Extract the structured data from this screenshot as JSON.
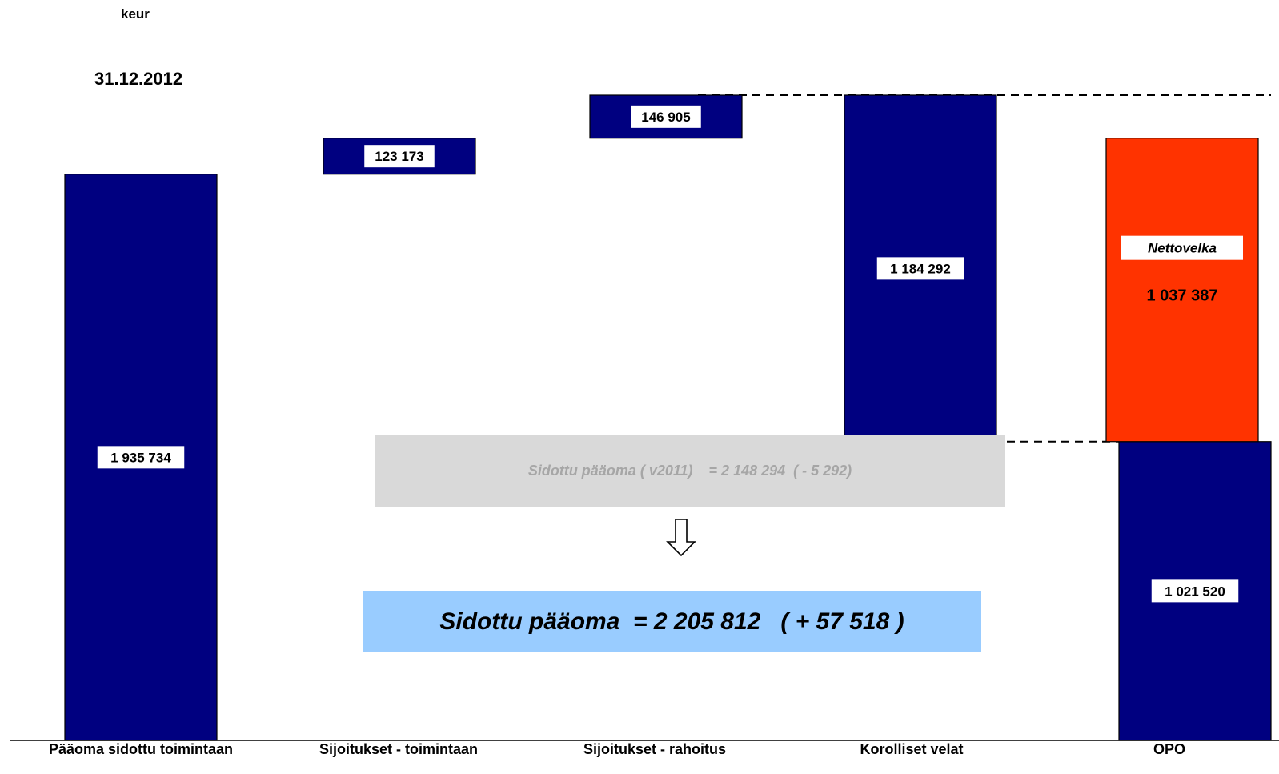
{
  "header": {
    "unit": "keur",
    "date": "31.12.2012"
  },
  "chart_data": {
    "type": "bar",
    "variant": "waterfall",
    "categories": [
      "Pääoma sidottu toimintaan",
      "Sijoitukset - toimintaan",
      "Sijoitukset - rahoitus",
      "Korolliset velat",
      "OPO"
    ],
    "bars": [
      {
        "category": "Pääoma sidottu toimintaan",
        "start": 0,
        "end": 1935734,
        "value": 1935734,
        "label": "1 935 734",
        "color": "#000080"
      },
      {
        "category": "Sijoitukset - toimintaan",
        "start": 1935734,
        "end": 2058907,
        "value": 123173,
        "label": "123 173",
        "color": "#000080"
      },
      {
        "category": "Sijoitukset - rahoitus",
        "start": 2058907,
        "end": 2205812,
        "value": 146905,
        "label": "146 905",
        "color": "#000080"
      },
      {
        "category": "Korolliset velat",
        "start": 1021520,
        "end": 2205812,
        "value": 1184292,
        "label": "1 184 292",
        "color": "#000080"
      },
      {
        "category": "OPO",
        "start": 0,
        "end": 1021520,
        "value": 1021520,
        "label": "1 021 520",
        "color": "#000080"
      },
      {
        "category": "OPO",
        "start": 1021520,
        "end": 2058907,
        "value": 1037387,
        "label": "1 037 387",
        "title": "Nettovelka",
        "color": "#ff3300"
      }
    ],
    "ylim": [
      0,
      2205812
    ]
  },
  "notes": {
    "previous": "Sidottu pääoma ( v2011)    = 2 148 294  ( - 5 292)",
    "current": "Sidottu pääoma  = 2 205 812   ( + 57 518 )"
  },
  "colors": {
    "bar_blue": "#000080",
    "net_debt_red": "#ff3300",
    "note_grey": "#d9d9d9",
    "note_blue": "#99ccff"
  }
}
